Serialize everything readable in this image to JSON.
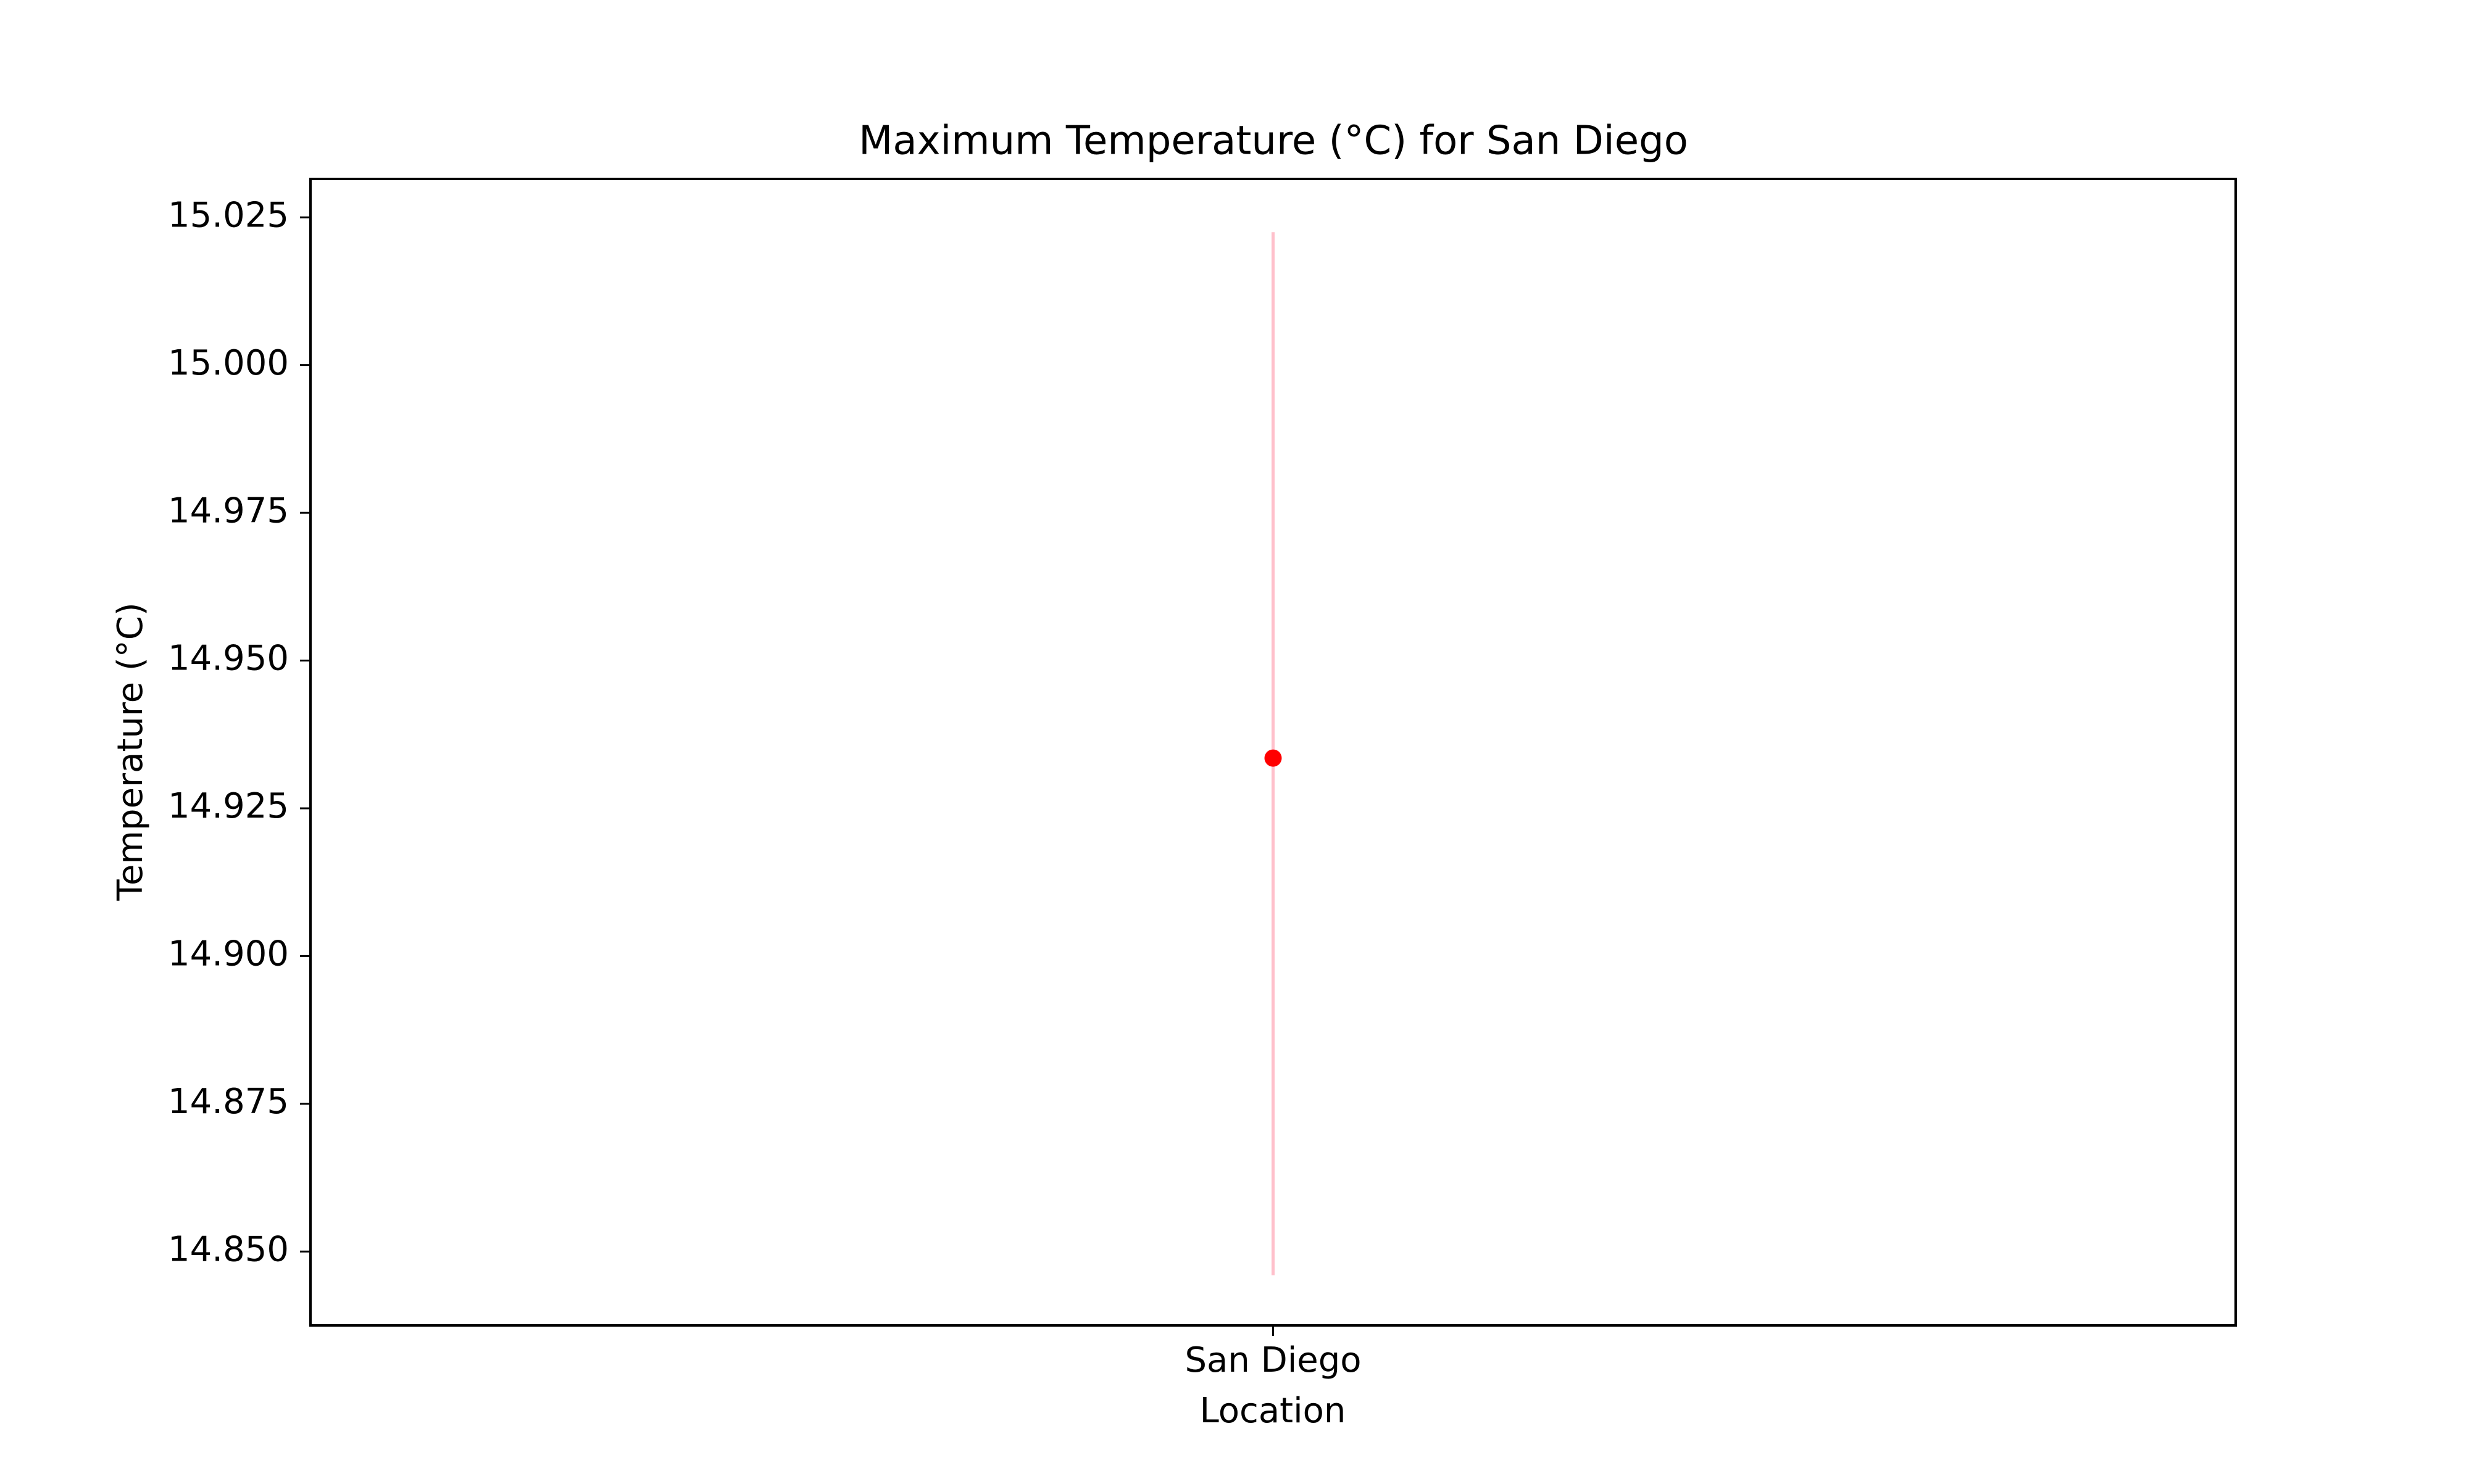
{
  "chart_data": {
    "type": "scatter",
    "title": "Maximum Temperature (°C) for San Diego",
    "xlabel": "Location",
    "ylabel": "Temperature (°C)",
    "categories": [
      "San Diego"
    ],
    "series": [
      {
        "values": [
          14.9335
        ],
        "error_low": [
          14.846
        ],
        "error_high": [
          15.0225
        ],
        "marker_color": "#ff0000",
        "errorbar_color": "#ffc0cb"
      }
    ],
    "ylim": [
      14.8375,
      15.0315
    ],
    "yticks": [
      14.85,
      14.875,
      14.9,
      14.925,
      14.95,
      14.975,
      15.0,
      15.025
    ],
    "ytick_labels": [
      "14.850",
      "14.875",
      "14.900",
      "14.925",
      "14.950",
      "14.975",
      "15.000",
      "15.025"
    ],
    "grid": false,
    "legend": false
  }
}
